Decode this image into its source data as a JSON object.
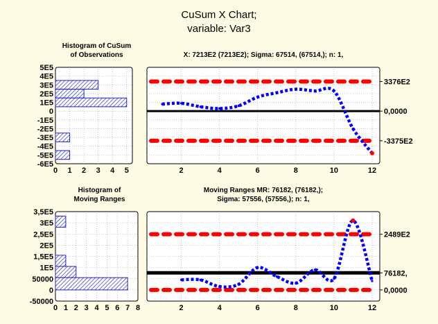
{
  "title": "CuSum X Chart;",
  "subtitle": "variable:  Var3",
  "colors": {
    "background": "#fffce6",
    "line": "#0000ff",
    "limit": "#ff0000",
    "center": "#000000",
    "hist_fill": "#1f1fd0"
  },
  "chart_data": [
    {
      "type": "bar",
      "orientation": "horizontal",
      "title": "Histogram of CuSum\nof Observations",
      "categories": [
        "5E5",
        "4E5",
        "3E5",
        "2E5",
        "1E5",
        "0",
        "-1E5",
        "-2E5",
        "-3E5",
        "-4E5",
        "-5E5",
        "-6E5"
      ],
      "bins": [
        {
          "from": 250000,
          "to": 350000,
          "count": 3
        },
        {
          "from": 150000,
          "to": 250000,
          "count": 2
        },
        {
          "from": 50000,
          "to": 150000,
          "count": 5
        },
        {
          "from": -350000,
          "to": -250000,
          "count": 1
        },
        {
          "from": -550000,
          "to": -450000,
          "count": 1
        }
      ],
      "xticks": [
        "0",
        "1",
        "2",
        "3",
        "4",
        "5"
      ],
      "xlim": [
        0,
        5.4
      ],
      "ylim": [
        -600000,
        500000
      ],
      "grid": true
    },
    {
      "type": "line",
      "title": "X: 7213E2 (7213E2); Sigma: 67514, (67514,); n: 1,",
      "x": [
        1,
        2,
        3,
        4,
        5,
        6,
        7,
        8,
        9,
        10,
        11,
        12
      ],
      "values": [
        80000,
        90000,
        50000,
        30000,
        60000,
        160000,
        210000,
        250000,
        230000,
        230000,
        -200000,
        -480000
      ],
      "limits": {
        "ucl": 337600,
        "center": 0,
        "lcl": -337500
      },
      "right_labels": [
        "3376E2",
        "0,0000",
        "-3375E2"
      ],
      "xticks": [
        "2",
        "4",
        "6",
        "8",
        "10",
        "12"
      ],
      "xlim": [
        0.2,
        12.4
      ],
      "ylim": [
        -600000,
        500000
      ],
      "grid": true
    },
    {
      "type": "bar",
      "orientation": "horizontal",
      "title": "Histogram of\nMoving Ranges",
      "categories": [
        "3,5E5",
        "3E5",
        "2,5E5",
        "2E5",
        "1,5E5",
        "1E5",
        "50000",
        "0",
        "-50000"
      ],
      "bins": [
        {
          "from": 280000,
          "to": 330000,
          "count": 1
        },
        {
          "from": 105000,
          "to": 155000,
          "count": 1
        },
        {
          "from": 55000,
          "to": 105000,
          "count": 2
        },
        {
          "from": 0,
          "to": 55000,
          "count": 7
        }
      ],
      "xticks": [
        "0",
        "1",
        "2",
        "3",
        "4",
        "5",
        "6",
        "7",
        "8"
      ],
      "xlim": [
        0,
        8
      ],
      "ylim": [
        -50000,
        350000
      ],
      "grid": true
    },
    {
      "type": "line",
      "title": "Moving Ranges  MR: 76182, (76182,);\nSigma: 57556, (57556,); n: 1,",
      "x": [
        2,
        3,
        4,
        5,
        6,
        7,
        8,
        9,
        10,
        11,
        12
      ],
      "values": [
        45000,
        45000,
        15000,
        25000,
        100000,
        60000,
        30000,
        90000,
        50000,
        310000,
        40000
      ],
      "limits": {
        "ucl": 248900,
        "center": 76182,
        "lcl": 0
      },
      "right_labels": [
        "2489E2",
        "76182,",
        "0,0000"
      ],
      "xticks": [
        "2",
        "4",
        "6",
        "8",
        "10",
        "12"
      ],
      "xlim": [
        0.2,
        12.4
      ],
      "ylim": [
        -50000,
        350000
      ],
      "grid": true
    }
  ]
}
